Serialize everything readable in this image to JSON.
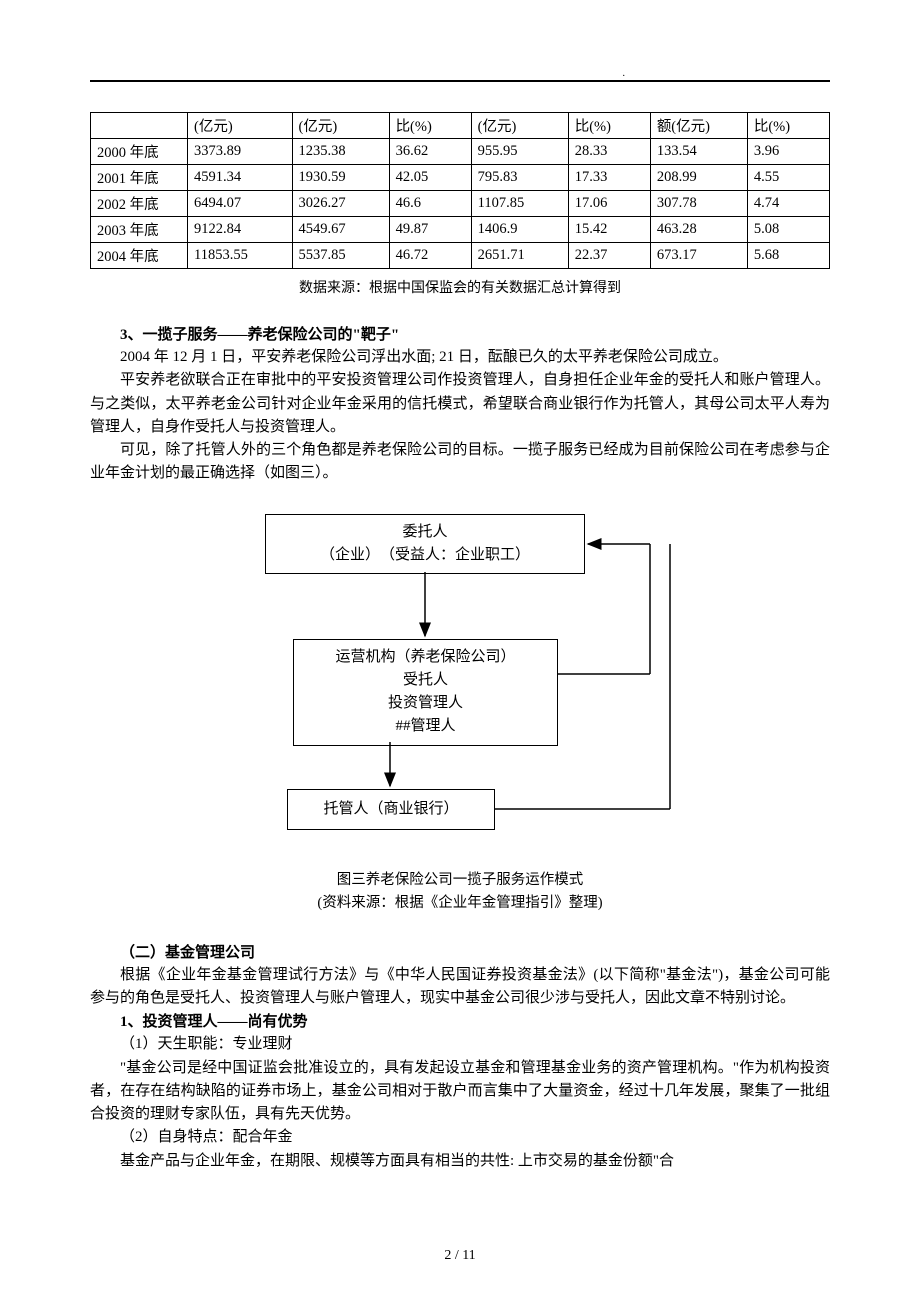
{
  "table": {
    "header": [
      "",
      "(亿元)",
      "(亿元)",
      "比(%)",
      "(亿元)",
      "比(%)",
      "额(亿元)",
      "比(%)"
    ],
    "rows": [
      [
        "2000 年底",
        "3373.89",
        "1235.38",
        "36.62",
        "955.95",
        "28.33",
        "133.54",
        "3.96"
      ],
      [
        "2001 年底",
        "4591.34",
        "1930.59",
        "42.05",
        "795.83",
        "17.33",
        "208.99",
        "4.55"
      ],
      [
        "2002 年底",
        "6494.07",
        "3026.27",
        "46.6",
        "1107.85",
        "17.06",
        "307.78",
        "4.74"
      ],
      [
        "2003 年底",
        "9122.84",
        "4549.67",
        "49.87",
        "1406.9",
        "15.42",
        "463.28",
        "5.08"
      ],
      [
        "2004 年底",
        "11853.55",
        "5537.85",
        "46.72",
        "2651.71",
        "22.37",
        "673.17",
        "5.68"
      ]
    ],
    "source": "数据来源：根据中国保监会的有关数据汇总计算得到",
    "col_widths": [
      "13%",
      "14%",
      "13%",
      "11%",
      "13%",
      "11%",
      "13%",
      "11%"
    ],
    "border_color": "#000000",
    "font_size": 14.5
  },
  "section3": {
    "heading": "3、一揽子服务——养老保险公司的\"靶子\"",
    "p1": "2004 年 12 月 1 日，平安养老保险公司浮出水面; 21 日，酝酿已久的太平养老保险公司成立。",
    "p2": "平安养老欲联合正在审批中的平安投资管理公司作投资管理人，自身担任企业年金的受托人和账户管理人。与之类似，太平养老金公司针对企业年金采用的信托模式，希望联合商业银行作为托管人，其母公司太平人寿为管理人，自身作受托人与投资管理人。",
    "p3": "可见，除了托管人外的三个角色都是养老保险公司的目标。一揽子服务已经成为目前保险公司在考虑参与企业年金计划的最正确选择（如图三）。"
  },
  "diagram": {
    "box1": {
      "line1": "委托人",
      "line2": "（企业）　（受益人：企业职工）"
    },
    "box2": {
      "line1": "运营机构（养老保险公司）",
      "line2": "受托人",
      "line3": "投资管理人",
      "line4": "##管理人"
    },
    "box3": {
      "line1": "托管人（商业银行）"
    },
    "caption1": "图三养老保险公司一揽子服务运作模式",
    "caption2": "(资料来源：根据《企业年金管理指引》整理)",
    "arrow_color": "#000000",
    "box_border_color": "#000000"
  },
  "section_b": {
    "heading": "（二）基金管理公司",
    "p1": "根据《企业年金基金管理试行方法》与《中华人民国证券投资基金法》(以下简称\"基金法\")，基金公司可能参与的角色是受托人、投资管理人与账户管理人，现实中基金公司很少涉与受托人，因此文章不特别讨论。"
  },
  "section_b1": {
    "heading": "1、投资管理人——尚有优势",
    "item1_title": "（1）天生职能：专业理财",
    "item1_p": "\"基金公司是经中国证监会批准设立的，具有发起设立基金和管理基金业务的资产管理机构。\"作为机构投资者，在存在结构缺陷的证券市场上，基金公司相对于散户而言集中了大量资金，经过十几年发展，聚集了一批组合投资的理财专家队伍，具有先天优势。",
    "item2_title": "（2）自身特点：配合年金",
    "item2_p": "基金产品与企业年金，在期限、规模等方面具有相当的共性: 上市交易的基金份额\"合"
  },
  "footer": "2 / 11"
}
